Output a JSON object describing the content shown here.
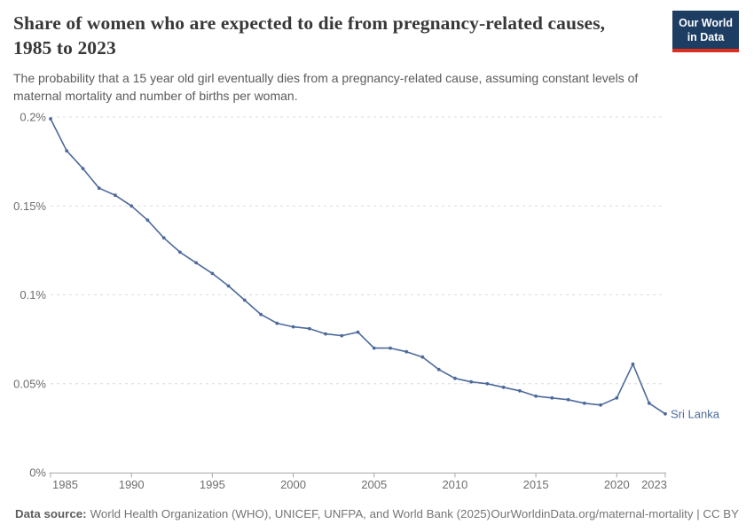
{
  "header": {
    "title": "Share of women who are expected to die from pregnancy-related causes, 1985 to 2023",
    "subtitle": "The probability that a 15 year old girl eventually dies from a pregnancy-related cause, assuming constant levels of maternal mortality and number of births per woman.",
    "logo": {
      "line1": "Our World",
      "line2": "in Data",
      "bg_color": "#1d3d63",
      "accent_color": "#dc2e1f"
    }
  },
  "chart_data": {
    "type": "line",
    "title": "Share of women who are expected to die from pregnancy-related causes, 1985 to 2023",
    "unit": "%",
    "xlim": [
      1985,
      2023
    ],
    "ylim": [
      0,
      0.2
    ],
    "grid": "horizontal-dashed",
    "legend_position": "end-of-line-label",
    "x_ticks": [
      1985,
      1990,
      1995,
      2000,
      2005,
      2010,
      2015,
      2020,
      2023
    ],
    "y_ticks": [
      {
        "value": 0,
        "label": "0%"
      },
      {
        "value": 0.05,
        "label": "0.05%"
      },
      {
        "value": 0.1,
        "label": "0.1%"
      },
      {
        "value": 0.15,
        "label": "0.15%"
      },
      {
        "value": 0.2,
        "label": "0.2%"
      }
    ],
    "series": [
      {
        "name": "Sri Lanka",
        "color": "#4c6a9c",
        "x": [
          1985,
          1986,
          1987,
          1988,
          1989,
          1990,
          1991,
          1992,
          1993,
          1994,
          1995,
          1996,
          1997,
          1998,
          1999,
          2000,
          2001,
          2002,
          2003,
          2004,
          2005,
          2006,
          2007,
          2008,
          2009,
          2010,
          2011,
          2012,
          2013,
          2014,
          2015,
          2016,
          2017,
          2018,
          2019,
          2020,
          2021,
          2022,
          2023
        ],
        "values": [
          0.199,
          0.181,
          0.171,
          0.16,
          0.156,
          0.15,
          0.142,
          0.132,
          0.124,
          0.118,
          0.112,
          0.105,
          0.097,
          0.089,
          0.084,
          0.082,
          0.081,
          0.078,
          0.077,
          0.079,
          0.07,
          0.07,
          0.068,
          0.065,
          0.058,
          0.053,
          0.051,
          0.05,
          0.048,
          0.046,
          0.043,
          0.042,
          0.041,
          0.039,
          0.038,
          0.042,
          0.061,
          0.039,
          0.033
        ]
      }
    ]
  },
  "footer": {
    "source_label": "Data source:",
    "source_text": "World Health Organization (WHO), UNICEF, UNFPA, and World Bank (2025)",
    "attribution": "OurWorldinData.org/maternal-mortality | CC BY"
  },
  "colors": {
    "line": "#4c6a9c",
    "grid": "#dcdcdc",
    "axis": "#a8a8a8",
    "tick_label": "#6e6e6e",
    "title": "#383838",
    "subtitle": "#5b5b5b",
    "footer": "#757575"
  }
}
